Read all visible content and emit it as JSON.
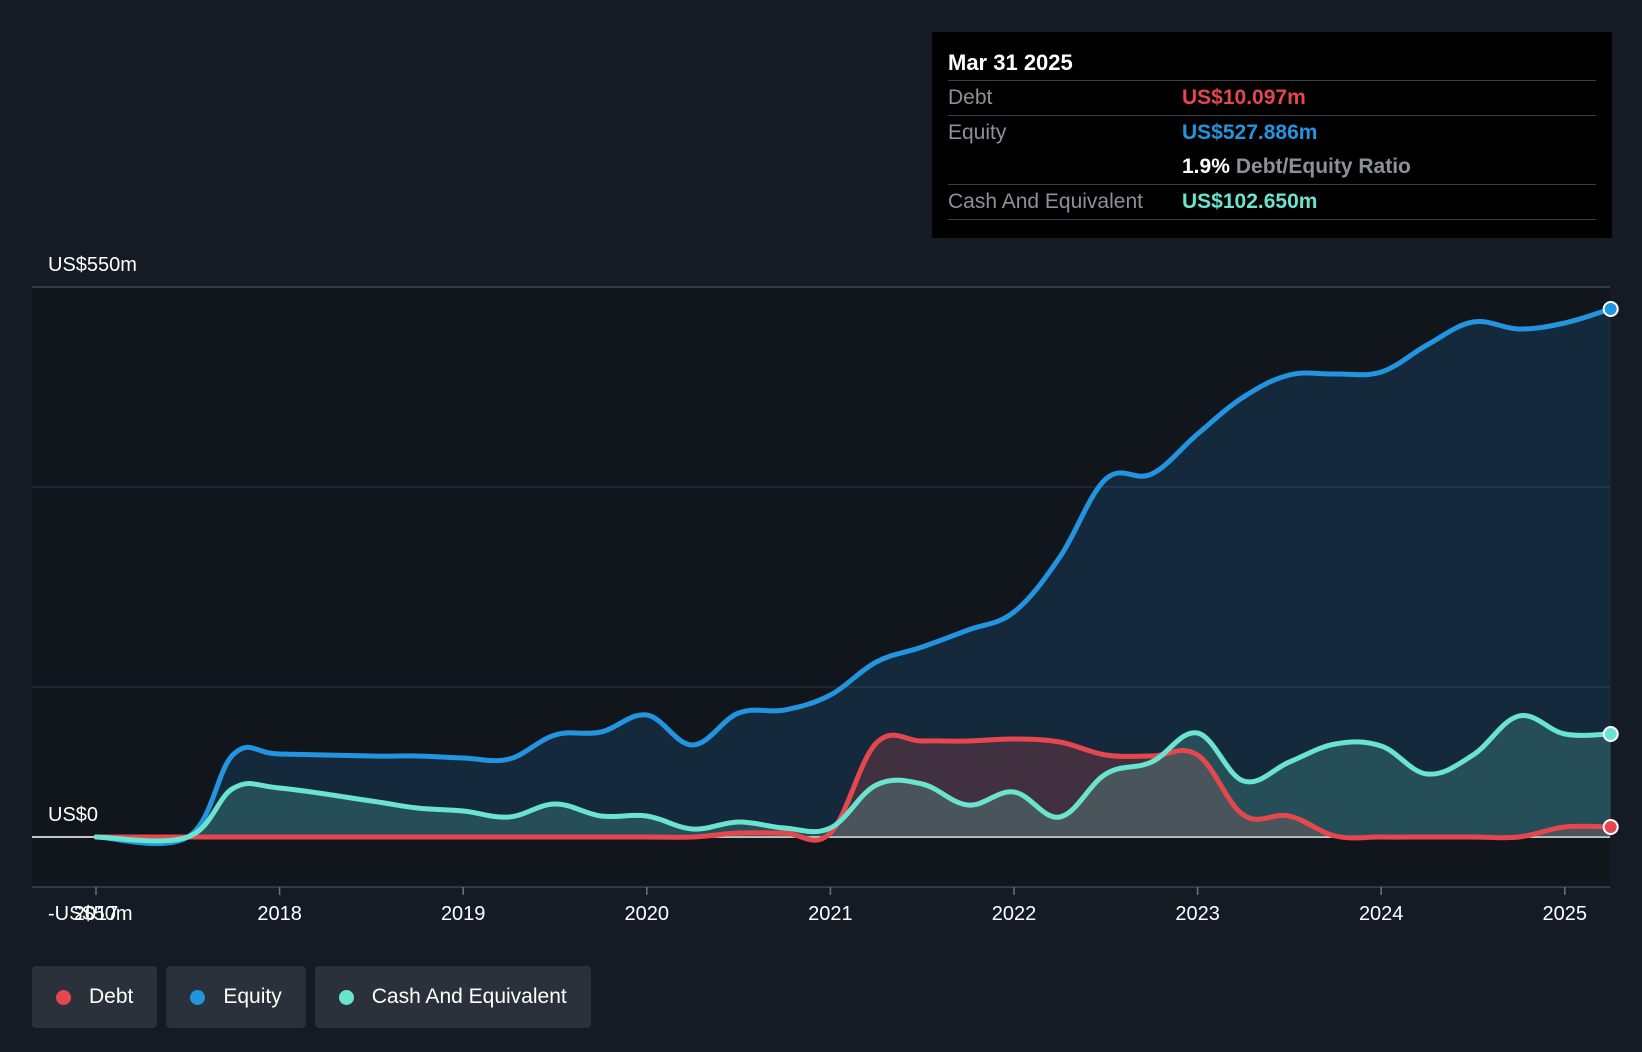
{
  "tooltip": {
    "date": "Mar 31 2025",
    "debt_label": "Debt",
    "debt_value": "US$10.097m",
    "equity_label": "Equity",
    "equity_value": "US$527.886m",
    "ratio_value": "1.9%",
    "ratio_label": "Debt/Equity Ratio",
    "cash_label": "Cash And Equivalent",
    "cash_value": "US$102.650m"
  },
  "legend": {
    "debt": "Debt",
    "equity": "Equity",
    "cash": "Cash And Equivalent"
  },
  "colors": {
    "debt": "#e5474f",
    "equity": "#2394df",
    "cash": "#6be4cf",
    "background": "#151b24",
    "plot_background": "#11151c"
  },
  "chart_data": {
    "type": "area",
    "title": "",
    "xlabel": "",
    "ylabel": "",
    "ylim": [
      -50,
      550
    ],
    "y_tick_labels": [
      {
        "value": 550,
        "label": "US$550m"
      },
      {
        "value": 0,
        "label": "US$0"
      },
      {
        "value": -50,
        "label": "-US$50m"
      }
    ],
    "x_tick_labels": [
      "2017",
      "2018",
      "2019",
      "2020",
      "2021",
      "2022",
      "2023",
      "2024",
      "2025"
    ],
    "x_range": [
      2016.7,
      2025.25
    ],
    "series": [
      {
        "name": "Equity",
        "x": [
          2017.0,
          2017.5,
          2017.75,
          2018.0,
          2018.5,
          2018.75,
          2019.0,
          2019.25,
          2019.5,
          2019.75,
          2020.0,
          2020.25,
          2020.5,
          2020.75,
          2021.0,
          2021.25,
          2021.5,
          2021.75,
          2022.0,
          2022.25,
          2022.5,
          2022.75,
          2023.0,
          2023.25,
          2023.5,
          2023.75,
          2024.0,
          2024.25,
          2024.5,
          2024.75,
          2025.0,
          2025.25
        ],
        "values": [
          0,
          0,
          83,
          83,
          81,
          81,
          79,
          78,
          102,
          105,
          122,
          92,
          124,
          127,
          142,
          175,
          190,
          207,
          225,
          280,
          358,
          363,
          403,
          440,
          462,
          463,
          465,
          492,
          515,
          508,
          514,
          528
        ]
      },
      {
        "name": "Debt",
        "x": [
          2017.0,
          2017.5,
          2017.75,
          2018.0,
          2018.5,
          2018.75,
          2019.0,
          2019.25,
          2019.5,
          2019.75,
          2020.0,
          2020.25,
          2020.5,
          2020.75,
          2021.0,
          2021.25,
          2021.5,
          2021.75,
          2022.0,
          2022.25,
          2022.5,
          2022.75,
          2023.0,
          2023.25,
          2023.5,
          2023.75,
          2024.0,
          2024.25,
          2024.5,
          2024.75,
          2025.0,
          2025.25
        ],
        "values": [
          0,
          0,
          0,
          0,
          0,
          0,
          0,
          0,
          0,
          0,
          0,
          0,
          4,
          4,
          4,
          94,
          96,
          96,
          98,
          95,
          82,
          81,
          82,
          22,
          21,
          1,
          0,
          0,
          0,
          0,
          10,
          10
        ]
      },
      {
        "name": "Cash And Equivalent",
        "x": [
          2017.0,
          2017.5,
          2017.75,
          2018.0,
          2018.5,
          2018.75,
          2019.0,
          2019.25,
          2019.5,
          2019.75,
          2020.0,
          2020.25,
          2020.5,
          2020.75,
          2021.0,
          2021.25,
          2021.5,
          2021.75,
          2022.0,
          2022.25,
          2022.5,
          2022.75,
          2023.0,
          2023.25,
          2023.5,
          2023.75,
          2024.0,
          2024.25,
          2024.5,
          2024.75,
          2025.0,
          2025.25
        ],
        "values": [
          0,
          0,
          49,
          49,
          36,
          29,
          26,
          20,
          33,
          21,
          21,
          8,
          15,
          9,
          9,
          52,
          53,
          32,
          45,
          20,
          63,
          75,
          104,
          56,
          75,
          93,
          91,
          63,
          82,
          121,
          103,
          103
        ]
      }
    ],
    "legend_position": "bottom-left",
    "grid": true
  }
}
